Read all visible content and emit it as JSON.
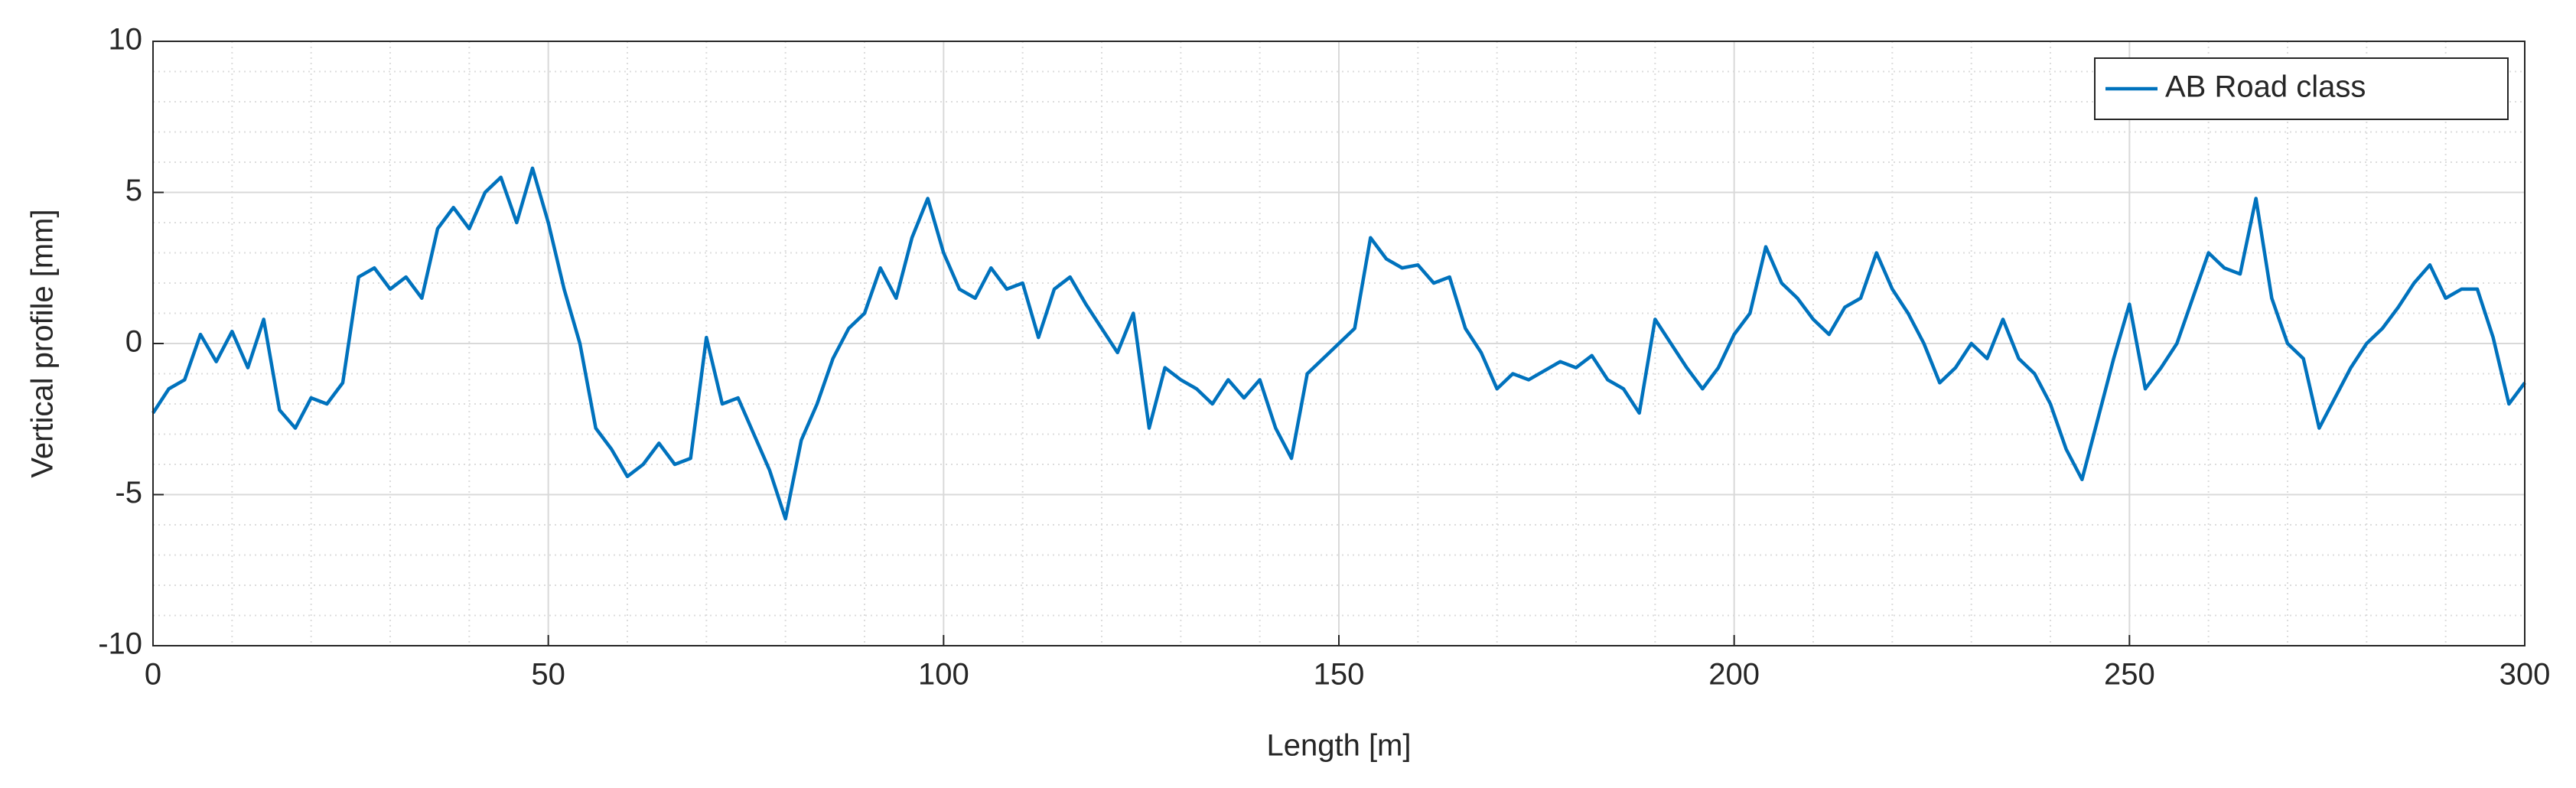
{
  "chart_data": {
    "type": "line",
    "xlabel": "Length [m]",
    "ylabel": "Vertical profile [mm]",
    "x": [
      0,
      2,
      4,
      6,
      8,
      10,
      12,
      14,
      16,
      18,
      20,
      22,
      24,
      26,
      28,
      30,
      32,
      34,
      36,
      38,
      40,
      42,
      44,
      46,
      48,
      50,
      52,
      54,
      56,
      58,
      60,
      62,
      64,
      66,
      68,
      70,
      72,
      74,
      76,
      78,
      80,
      82,
      84,
      86,
      88,
      90,
      92,
      94,
      96,
      98,
      100,
      102,
      104,
      106,
      108,
      110,
      112,
      114,
      116,
      118,
      120,
      122,
      124,
      126,
      128,
      130,
      132,
      134,
      136,
      138,
      140,
      142,
      144,
      146,
      148,
      150,
      152,
      154,
      156,
      158,
      160,
      162,
      164,
      166,
      168,
      170,
      172,
      174,
      176,
      178,
      180,
      182,
      184,
      186,
      188,
      190,
      192,
      194,
      196,
      198,
      200,
      202,
      204,
      206,
      208,
      210,
      212,
      214,
      216,
      218,
      220,
      222,
      224,
      226,
      228,
      230,
      232,
      234,
      236,
      238,
      240,
      242,
      244,
      246,
      248,
      250,
      252,
      254,
      256,
      258,
      260,
      262,
      264,
      266,
      268,
      270,
      272,
      274,
      276,
      278,
      280,
      282,
      284,
      286,
      288,
      290,
      292,
      294,
      296,
      298,
      300
    ],
    "series": [
      {
        "name": "AB Road class",
        "color": "#0072BD",
        "values": [
          -2.3,
          -1.5,
          -1.2,
          0.3,
          -0.6,
          0.4,
          -0.8,
          0.8,
          -2.2,
          -2.8,
          -1.8,
          -2.0,
          -1.3,
          2.2,
          2.5,
          1.8,
          2.2,
          1.5,
          3.8,
          4.5,
          3.8,
          5.0,
          5.5,
          4.0,
          5.8,
          4.0,
          1.8,
          0.0,
          -2.8,
          -3.5,
          -4.4,
          -4.0,
          -3.3,
          -4.0,
          -3.8,
          0.2,
          -2.0,
          -1.8,
          -3.0,
          -4.2,
          -5.8,
          -3.2,
          -2.0,
          -0.5,
          0.5,
          1.0,
          2.5,
          1.5,
          3.5,
          4.8,
          3.0,
          1.8,
          1.5,
          2.5,
          1.8,
          2.0,
          0.2,
          1.8,
          2.2,
          1.3,
          0.5,
          -0.3,
          1.0,
          -2.8,
          -0.8,
          -1.2,
          -1.5,
          -2.0,
          -1.2,
          -1.8,
          -1.2,
          -2.8,
          -3.8,
          -1.0,
          -0.5,
          0.0,
          0.5,
          3.5,
          2.8,
          2.5,
          2.6,
          2.0,
          2.2,
          0.5,
          -0.3,
          -1.5,
          -1.0,
          -1.2,
          -0.9,
          -0.6,
          -0.8,
          -0.4,
          -1.2,
          -1.5,
          -2.3,
          0.8,
          0.0,
          -0.8,
          -1.5,
          -0.8,
          0.3,
          1.0,
          3.2,
          2.0,
          1.5,
          0.8,
          0.3,
          1.2,
          1.5,
          3.0,
          1.8,
          1.0,
          0.0,
          -1.3,
          -0.8,
          0.0,
          -0.5,
          0.8,
          -0.5,
          -1.0,
          -2.0,
          -3.5,
          -4.5,
          -2.5,
          -0.5,
          1.3,
          -1.5,
          -0.8,
          0.0,
          1.5,
          3.0,
          2.5,
          2.3,
          4.8,
          1.5,
          0.0,
          -0.5,
          -2.8,
          -1.8,
          -0.8,
          0.0,
          0.5,
          1.2,
          2.0,
          2.6,
          1.5,
          1.8,
          1.8,
          0.2,
          -2.0,
          -1.3
        ]
      }
    ],
    "xlim": [
      0,
      300
    ],
    "xticks": [
      0,
      50,
      100,
      150,
      200,
      250,
      300
    ],
    "ylim": [
      -10,
      10
    ],
    "yticks": [
      -10,
      -5,
      0,
      5,
      10
    ],
    "grid": true,
    "minor_grid": true,
    "legend": "upper right"
  }
}
